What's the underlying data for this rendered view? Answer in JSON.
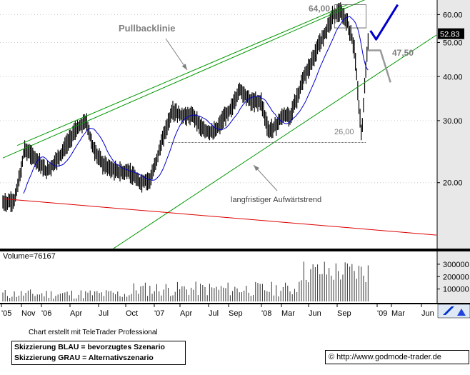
{
  "chart_data": {
    "type": "candlestick",
    "title": "",
    "price_axis": {
      "scale": "log",
      "ticks": [
        20.0,
        30.0,
        40.0,
        50.0,
        60.0
      ],
      "ylim": [
        13,
        66
      ]
    },
    "volume_axis": {
      "ticks": [
        "100000",
        "200000",
        "300000"
      ],
      "ylim": [
        0,
        380000
      ]
    },
    "volume_label": "Volume=76167",
    "current_price": "52.83",
    "x_ticks": [
      "'05",
      "Nov",
      "'06",
      "Apr",
      "Jul",
      "Oct",
      "'07",
      "Apr",
      "Jul",
      "Sep",
      "'08",
      "Mar",
      "Jun",
      "Sep",
      "'09",
      "Mar",
      "Jun"
    ],
    "annotations": {
      "pullback": "Pullbacklinie",
      "longterm": "langfristiger Aufwärtstrend",
      "high": "64,00",
      "low": "26,00",
      "target": "47,50"
    },
    "anchors": [
      {
        "t": 0.0,
        "p": 17.5
      },
      {
        "t": 0.8,
        "p": 17.8
      },
      {
        "t": 1.2,
        "p": 21
      },
      {
        "t": 1.5,
        "p": 25
      },
      {
        "t": 2.5,
        "p": 23
      },
      {
        "t": 3.0,
        "p": 21.5
      },
      {
        "t": 3.5,
        "p": 22.5
      },
      {
        "t": 4.0,
        "p": 24
      },
      {
        "t": 5.0,
        "p": 28
      },
      {
        "t": 5.8,
        "p": 30
      },
      {
        "t": 6.3,
        "p": 25
      },
      {
        "t": 7.0,
        "p": 22.5
      },
      {
        "t": 8.0,
        "p": 21.5
      },
      {
        "t": 8.8,
        "p": 21.5
      },
      {
        "t": 9.5,
        "p": 20
      },
      {
        "t": 10.3,
        "p": 20.5
      },
      {
        "t": 10.8,
        "p": 24
      },
      {
        "t": 11.3,
        "p": 28
      },
      {
        "t": 11.8,
        "p": 32
      },
      {
        "t": 12.5,
        "p": 31
      },
      {
        "t": 13.3,
        "p": 31
      },
      {
        "t": 14.0,
        "p": 28
      },
      {
        "t": 14.8,
        "p": 28
      },
      {
        "t": 15.5,
        "p": 31
      },
      {
        "t": 16.0,
        "p": 33
      },
      {
        "t": 16.5,
        "p": 37
      },
      {
        "t": 17.3,
        "p": 34
      },
      {
        "t": 18.0,
        "p": 34
      },
      {
        "t": 18.5,
        "p": 28
      },
      {
        "t": 19.0,
        "p": 29
      },
      {
        "t": 19.5,
        "p": 31
      },
      {
        "t": 20.0,
        "p": 31
      },
      {
        "t": 20.5,
        "p": 35
      },
      {
        "t": 21.0,
        "p": 40
      },
      {
        "t": 21.5,
        "p": 44
      },
      {
        "t": 22.0,
        "p": 49
      },
      {
        "t": 22.5,
        "p": 54
      },
      {
        "t": 23.0,
        "p": 60
      },
      {
        "t": 23.5,
        "p": 61
      },
      {
        "t": 24.0,
        "p": 57
      },
      {
        "t": 24.5,
        "p": 48
      },
      {
        "t": 24.8,
        "p": 33
      },
      {
        "t": 25.0,
        "p": 27
      },
      {
        "t": 25.3,
        "p": 44
      },
      {
        "t": 25.5,
        "p": 52.8
      }
    ],
    "pullback_line": [
      {
        "t": 1.0,
        "p": 25.5
      },
      {
        "t": 24.0,
        "p": 64
      }
    ],
    "upper_channel": [
      {
        "t": 0.0,
        "p": 23.5
      },
      {
        "t": 25.9,
        "p": 68
      }
    ],
    "lower_channel": [
      {
        "t": 7.7,
        "p": 13
      },
      {
        "t": 30.2,
        "p": 52.5
      }
    ],
    "red_trend": [
      {
        "t": 0.0,
        "p": 18
      },
      {
        "t": 30.2,
        "p": 14.2
      }
    ],
    "support_line": [
      {
        "t": 11.5,
        "p": 26
      },
      {
        "t": 25.3,
        "p": 26
      }
    ],
    "blue_scenario": [
      {
        "t": 25.6,
        "p": 54
      },
      {
        "t": 26.0,
        "p": 51
      },
      {
        "t": 27.5,
        "p": 64
      }
    ],
    "grey_scenario": [
      {
        "t": 25.4,
        "p": 47.5
      },
      {
        "t": 26.3,
        "p": 47.5
      },
      {
        "t": 27.0,
        "p": 38.5
      }
    ]
  },
  "footer": {
    "credit": "Chart erstellt mit TeleTrader Professional",
    "legend_blue": "Skizzierung BLAU = bevorzugtes Szenario",
    "legend_grey": "Skizzierung GRAU = Alternativszenario",
    "copyright_symbol": "©",
    "url": "http://www.godmode-trader.de"
  },
  "toolbar": {
    "tool_icon": "pencil-icon"
  },
  "colors": {
    "price": "#000000",
    "ma": "#0000cc",
    "channel": "#009900",
    "red_trend": "#dd0000",
    "blue_scenario": "#0000cc",
    "grey_scenario": "#999999",
    "axis_bg": "#e8e8e8"
  }
}
